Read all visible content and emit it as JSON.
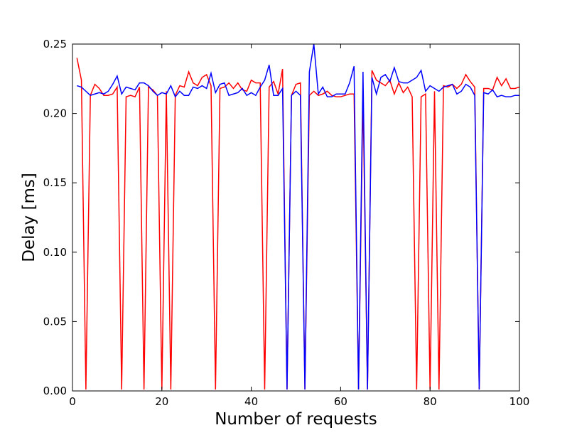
{
  "chart_data": {
    "type": "line",
    "title": "",
    "xlabel": "Number of requests",
    "ylabel": "Delay [ms]",
    "xlim": [
      0,
      100
    ],
    "ylim": [
      0.0,
      0.25
    ],
    "xticks": [
      0,
      20,
      40,
      60,
      80,
      100
    ],
    "xtick_labels": [
      "0",
      "20",
      "40",
      "60",
      "80",
      "100"
    ],
    "yticks": [
      0.0,
      0.05,
      0.1,
      0.15,
      0.2,
      0.25
    ],
    "ytick_labels": [
      "0.00",
      "0.05",
      "0.10",
      "0.15",
      "0.20",
      "0.25"
    ],
    "grid": false,
    "legend": "none",
    "series": [
      {
        "color": "#ff0000",
        "x": [
          1,
          2,
          3,
          4,
          5,
          6,
          7,
          8,
          9,
          10,
          11,
          12,
          13,
          14,
          15,
          16,
          17,
          18,
          19,
          20,
          21,
          22,
          23,
          24,
          25,
          26,
          27,
          28,
          29,
          30,
          31,
          32,
          33,
          34,
          35,
          36,
          37,
          38,
          39,
          40,
          41,
          42,
          43,
          44,
          45,
          46,
          47,
          48,
          49,
          50,
          51,
          52,
          53,
          54,
          55,
          56,
          57,
          58,
          59,
          60,
          61,
          62,
          63,
          64,
          65,
          66,
          67,
          68,
          69,
          70,
          71,
          72,
          73,
          74,
          75,
          76,
          77,
          78,
          79,
          80,
          81,
          82,
          83,
          84,
          85,
          86,
          87,
          88,
          89,
          90,
          91,
          92,
          93,
          94,
          95,
          96,
          97,
          98,
          99,
          100
        ],
        "y": [
          0.24,
          0.224,
          0.001,
          0.213,
          0.221,
          0.218,
          0.213,
          0.213,
          0.214,
          0.219,
          0.001,
          0.212,
          0.213,
          0.212,
          0.219,
          0.001,
          0.219,
          0.217,
          0.213,
          0.001,
          0.216,
          0.001,
          0.213,
          0.22,
          0.219,
          0.23,
          0.222,
          0.22,
          0.226,
          0.228,
          0.22,
          0.001,
          0.218,
          0.219,
          0.222,
          0.218,
          0.222,
          0.217,
          0.216,
          0.224,
          0.222,
          0.222,
          0.001,
          0.219,
          0.223,
          0.214,
          0.232,
          0.001,
          0.213,
          0.221,
          0.222,
          0.001,
          0.213,
          0.216,
          0.213,
          0.214,
          0.216,
          0.213,
          0.212,
          0.212,
          0.213,
          0.214,
          0.214,
          0.001,
          0.214,
          0.001,
          0.231,
          0.224,
          0.222,
          0.22,
          0.224,
          0.214,
          0.222,
          0.215,
          0.219,
          0.212,
          0.001,
          0.212,
          0.214,
          0.001,
          0.216,
          0.001,
          0.22,
          0.219,
          0.221,
          0.218,
          0.221,
          0.228,
          0.223,
          0.219,
          0.001,
          0.218,
          0.218,
          0.217,
          0.226,
          0.22,
          0.225,
          0.218,
          0.218,
          0.219
        ]
      },
      {
        "color": "#0000ff",
        "x": [
          1,
          2,
          3,
          4,
          5,
          6,
          7,
          8,
          9,
          10,
          11,
          12,
          13,
          14,
          15,
          16,
          17,
          18,
          19,
          20,
          21,
          22,
          23,
          24,
          25,
          26,
          27,
          28,
          29,
          30,
          31,
          32,
          33,
          34,
          35,
          36,
          37,
          38,
          39,
          40,
          41,
          42,
          43,
          44,
          45,
          46,
          47,
          48,
          49,
          50,
          51,
          52,
          53,
          54,
          55,
          56,
          57,
          58,
          59,
          60,
          61,
          62,
          63,
          64,
          65,
          66,
          67,
          68,
          69,
          70,
          71,
          72,
          73,
          74,
          75,
          76,
          77,
          78,
          79,
          80,
          81,
          82,
          83,
          84,
          85,
          86,
          87,
          88,
          89,
          90,
          91,
          92,
          93,
          94,
          95,
          96,
          97,
          98,
          99,
          100
        ],
        "y": [
          0.22,
          0.219,
          0.216,
          0.213,
          0.214,
          0.215,
          0.214,
          0.216,
          0.221,
          0.227,
          0.214,
          0.219,
          0.218,
          0.217,
          0.222,
          0.222,
          0.22,
          0.216,
          0.213,
          0.215,
          0.214,
          0.22,
          0.212,
          0.216,
          0.213,
          0.213,
          0.219,
          0.218,
          0.22,
          0.218,
          0.229,
          0.215,
          0.221,
          0.222,
          0.213,
          0.214,
          0.215,
          0.218,
          0.213,
          0.215,
          0.213,
          0.219,
          0.224,
          0.235,
          0.213,
          0.213,
          0.218,
          0.001,
          0.213,
          0.216,
          0.213,
          0.001,
          0.23,
          0.25,
          0.214,
          0.219,
          0.212,
          0.212,
          0.214,
          0.214,
          0.214,
          0.222,
          0.234,
          0.001,
          0.23,
          0.001,
          0.226,
          0.214,
          0.226,
          0.228,
          0.223,
          0.233,
          0.223,
          0.222,
          0.222,
          0.224,
          0.226,
          0.231,
          0.216,
          0.22,
          0.218,
          0.216,
          0.219,
          0.22,
          0.221,
          0.214,
          0.216,
          0.221,
          0.219,
          0.213,
          0.001,
          0.215,
          0.214,
          0.217,
          0.212,
          0.213,
          0.212,
          0.212,
          0.213,
          0.213
        ]
      }
    ]
  }
}
